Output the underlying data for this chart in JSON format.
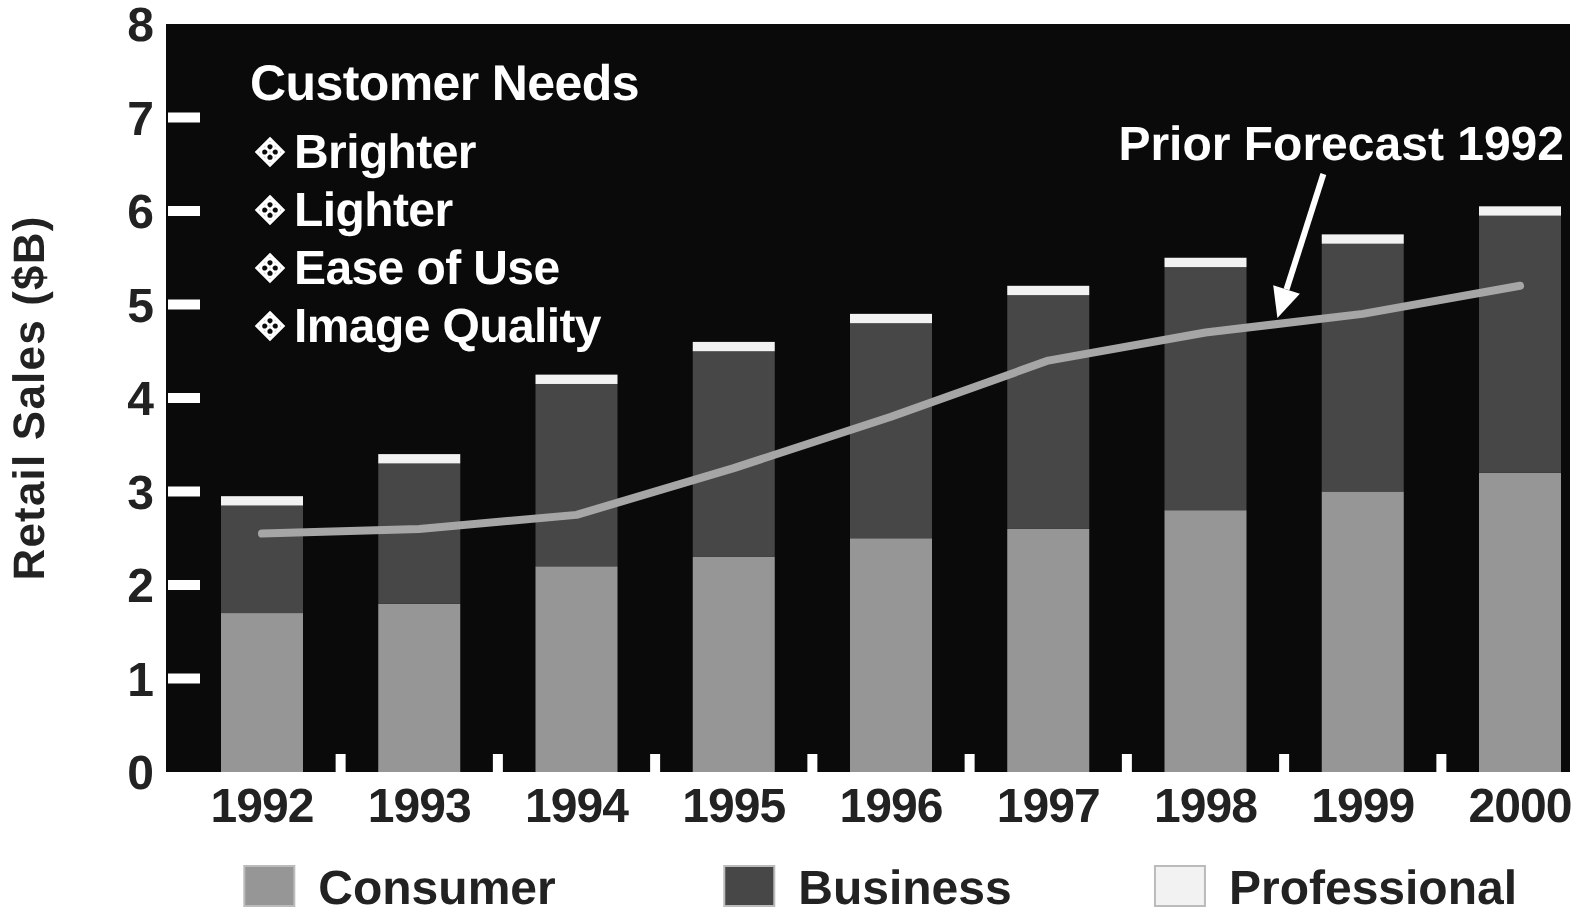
{
  "chart_data": {
    "type": "bar",
    "stacked": true,
    "categories": [
      "1992",
      "1993",
      "1994",
      "1995",
      "1996",
      "1997",
      "1998",
      "1999",
      "2000"
    ],
    "series": [
      {
        "name": "Consumer",
        "color": "#969696",
        "values": [
          1.7,
          1.8,
          2.2,
          2.3,
          2.5,
          2.6,
          2.8,
          3.0,
          3.2
        ]
      },
      {
        "name": "Business",
        "color": "#474747",
        "values": [
          1.15,
          1.5,
          1.95,
          2.2,
          2.3,
          2.5,
          2.6,
          2.65,
          2.75
        ]
      },
      {
        "name": "Professional",
        "color": "#f2f2f2",
        "values": [
          0.1,
          0.1,
          0.1,
          0.1,
          0.1,
          0.1,
          0.1,
          0.1,
          0.1
        ]
      },
      {
        "name": "Prior Forecast 1992",
        "type": "line",
        "color": "#a6a6a6",
        "values": [
          2.55,
          2.6,
          2.75,
          3.25,
          3.8,
          4.4,
          4.7,
          4.9,
          5.2
        ]
      }
    ],
    "ylabel": "Retail Sales ($B)",
    "ylim": [
      0,
      8
    ],
    "yticks": [
      0,
      1,
      2,
      3,
      4,
      5,
      6,
      7,
      8
    ],
    "annotations": [
      "Customer Needs",
      "Brighter",
      "Lighter",
      "Ease of Use",
      "Image Quality"
    ],
    "legend": "bottom",
    "grid": false
  }
}
